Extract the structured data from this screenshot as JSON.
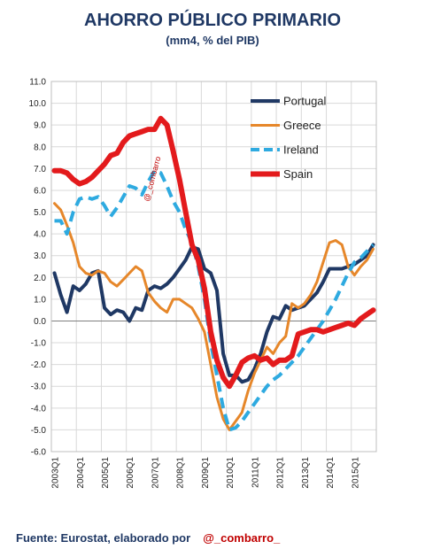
{
  "chart_data": {
    "type": "line",
    "title": "AHORRO PÚBLICO PRIMARIO",
    "subtitle": "(mm4, % del PIB)",
    "ylim": [
      -6,
      11
    ],
    "yticks": [
      "11.0",
      "10.0",
      "9.0",
      "8.0",
      "7.0",
      "6.0",
      "5.0",
      "4.0",
      "3.0",
      "2.0",
      "1.0",
      "0.0",
      "-1.0",
      "-2.0",
      "-3.0",
      "-4.0",
      "-5.0",
      "-6.0"
    ],
    "xticks": [
      "2003Q1",
      "2004Q1",
      "2005Q1",
      "2006Q1",
      "2007Q1",
      "2008Q1",
      "2009Q1",
      "2010Q1",
      "2011Q1",
      "2012Q1",
      "2013Q1",
      "2014Q1",
      "2015Q1"
    ],
    "x_start": "2003Q1",
    "x_end": "2015Q4",
    "grid": true,
    "legend_position": "top-right",
    "watermark": "@_combarro",
    "series": [
      {
        "name": "Portugal",
        "color": "#1f3864",
        "dash": "solid",
        "width": 4,
        "values": [
          2.2,
          1.2,
          0.4,
          1.6,
          1.4,
          1.7,
          2.2,
          2.3,
          0.6,
          0.3,
          0.5,
          0.4,
          0.0,
          0.6,
          0.5,
          1.4,
          1.6,
          1.5,
          1.7,
          2.0,
          2.4,
          2.8,
          3.4,
          3.3,
          2.4,
          2.2,
          1.4,
          -1.5,
          -2.5,
          -2.5,
          -2.8,
          -2.7,
          -2.2,
          -1.5,
          -0.5,
          0.2,
          0.1,
          0.7,
          0.5,
          0.6,
          0.7,
          1.0,
          1.3,
          1.8,
          2.4,
          2.4,
          2.4,
          2.5,
          2.6,
          2.8,
          3.0,
          3.5
        ]
      },
      {
        "name": "Greece",
        "color": "#e6872a",
        "dash": "solid",
        "width": 3,
        "values": [
          5.4,
          5.1,
          4.4,
          3.6,
          2.5,
          2.2,
          2.1,
          2.3,
          2.2,
          1.8,
          1.6,
          1.9,
          2.2,
          2.5,
          2.3,
          1.3,
          0.9,
          0.6,
          0.4,
          1.0,
          1.0,
          0.8,
          0.6,
          0.1,
          -0.5,
          -2.0,
          -3.5,
          -4.5,
          -5.0,
          -4.6,
          -4.2,
          -3.2,
          -2.4,
          -1.8,
          -1.2,
          -1.5,
          -1.0,
          -0.7,
          0.8,
          0.6,
          0.8,
          1.2,
          1.8,
          2.7,
          3.6,
          3.7,
          3.5,
          2.5,
          2.1,
          2.5,
          2.8,
          3.3
        ]
      },
      {
        "name": "Ireland",
        "color": "#2eaae0",
        "dash": "dashed",
        "width": 4,
        "values": [
          4.6,
          4.6,
          4.0,
          5.0,
          5.6,
          5.7,
          5.6,
          5.7,
          5.3,
          4.8,
          5.2,
          5.7,
          6.2,
          6.1,
          5.8,
          6.4,
          6.9,
          6.8,
          6.2,
          5.5,
          5.0,
          4.2,
          3.6,
          2.5,
          1.0,
          -1.0,
          -2.5,
          -4.0,
          -5.0,
          -4.9,
          -4.6,
          -4.2,
          -3.8,
          -3.4,
          -3.0,
          -2.7,
          -2.5,
          -2.2,
          -1.9,
          -1.6,
          -1.2,
          -0.8,
          -0.4,
          0.0,
          0.5,
          1.0,
          1.6,
          2.2,
          2.7,
          2.9,
          3.2,
          3.5
        ]
      },
      {
        "name": "Spain",
        "color": "#e31a1c",
        "dash": "solid",
        "width": 6,
        "values": [
          6.9,
          6.9,
          6.8,
          6.5,
          6.3,
          6.4,
          6.6,
          6.9,
          7.2,
          7.6,
          7.7,
          8.2,
          8.5,
          8.6,
          8.7,
          8.8,
          8.8,
          9.3,
          9.0,
          7.8,
          6.5,
          5.0,
          3.5,
          2.8,
          1.5,
          -0.5,
          -1.8,
          -2.6,
          -3.0,
          -2.5,
          -1.9,
          -1.7,
          -1.6,
          -1.8,
          -1.7,
          -2.0,
          -1.8,
          -1.8,
          -1.6,
          -0.6,
          -0.5,
          -0.4,
          -0.4,
          -0.5,
          -0.4,
          -0.3,
          -0.2,
          -0.1,
          -0.2,
          0.1,
          0.3,
          0.5
        ]
      }
    ]
  },
  "source": {
    "text": "Fuente: Eurostat, elaborado por",
    "handle": "@_combarro_"
  }
}
